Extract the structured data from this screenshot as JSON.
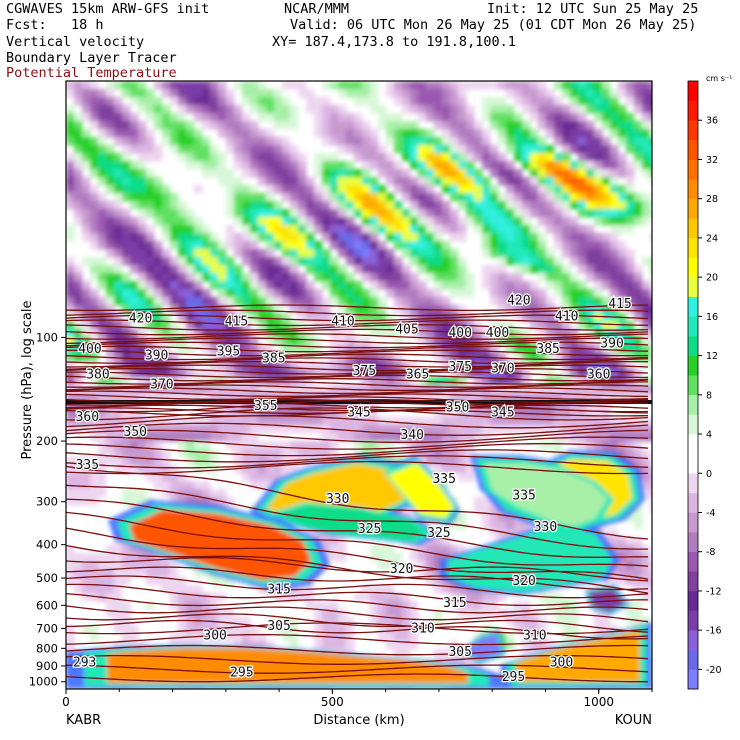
{
  "header": {
    "model": "CGWAVES 15km ARW-GFS init",
    "org": "NCAR/MMM",
    "init": "Init: 12 UTC Sun 25 May 25",
    "fcst": "Fcst:   18 h",
    "valid": "Valid: 06 UTC Mon 26 May 25 (01 CDT Mon 26 May 25)",
    "field1": "Vertical velocity",
    "field2": "Boundary Layer Tracer",
    "field3": "Potential Temperature",
    "xy": "XY= 187.4,173.8 to 191.8,100.1"
  },
  "colors": {
    "theta_contour": "#7a1010",
    "tracer_contour": "#000000"
  },
  "chart_data": {
    "type": "heatmap",
    "xlabel": "Distance (km)",
    "ylabel": "Pressure (hPa), log scale",
    "xlim": [
      0,
      1100
    ],
    "ylim": [
      1050,
      18
    ],
    "x_ticks": [
      "0",
      "500",
      "1000"
    ],
    "y_ticks": [
      "100",
      "200",
      "300",
      "400",
      "500",
      "600",
      "700",
      "800",
      "900",
      "1000"
    ],
    "left_endpoint": "KABR",
    "right_endpoint": "KOUN",
    "colorbar": {
      "unit": "cm s⁻¹",
      "tick_labels": [
        "36",
        "32",
        "28",
        "24",
        "20",
        "16",
        "12",
        "8",
        "4",
        "0",
        "-4",
        "-8",
        "-12",
        "-16",
        "-20"
      ],
      "levels": [
        -22,
        -20,
        -18,
        -16,
        -14,
        -12,
        -10,
        -8,
        -6,
        -4,
        -2,
        0,
        2,
        4,
        6,
        8,
        10,
        12,
        14,
        16,
        18,
        20,
        22,
        24,
        26,
        28,
        30,
        32,
        34,
        36,
        38,
        40
      ],
      "colors": [
        "#7d7dff",
        "#6a6ae8",
        "#8a60d8",
        "#7a3ea8",
        "#6a2a95",
        "#80409f",
        "#9a58b0",
        "#b07cc0",
        "#c89ad0",
        "#dcb6e2",
        "#eed6f0",
        "#ffffff",
        "#ffffff",
        "#d8f7d8",
        "#a8f0a8",
        "#60e060",
        "#28d028",
        "#10dc88",
        "#20e8b8",
        "#30f0e0",
        "#e8ff40",
        "#ffff00",
        "#ffe400",
        "#ffc800",
        "#ffa800",
        "#ff8c00",
        "#ff7000",
        "#ff5400",
        "#ff3800",
        "#ff1800",
        "#ff0000"
      ]
    },
    "theta_labels": [
      {
        "text": "420",
        "x": 140,
        "p": 88
      },
      {
        "text": "415",
        "x": 320,
        "p": 90
      },
      {
        "text": "410",
        "x": 520,
        "p": 90
      },
      {
        "text": "405",
        "x": 640,
        "p": 95
      },
      {
        "text": "400",
        "x": 740,
        "p": 97
      },
      {
        "text": "400",
        "x": 810,
        "p": 97
      },
      {
        "text": "420",
        "x": 850,
        "p": 78
      },
      {
        "text": "410",
        "x": 940,
        "p": 87
      },
      {
        "text": "415",
        "x": 1040,
        "p": 80
      },
      {
        "text": "400",
        "x": 45,
        "p": 108
      },
      {
        "text": "390",
        "x": 170,
        "p": 113
      },
      {
        "text": "395",
        "x": 305,
        "p": 110
      },
      {
        "text": "385",
        "x": 390,
        "p": 115
      },
      {
        "text": "385",
        "x": 905,
        "p": 108
      },
      {
        "text": "390",
        "x": 1025,
        "p": 104
      },
      {
        "text": "380",
        "x": 60,
        "p": 128
      },
      {
        "text": "370",
        "x": 180,
        "p": 137
      },
      {
        "text": "375",
        "x": 560,
        "p": 125
      },
      {
        "text": "365",
        "x": 660,
        "p": 128
      },
      {
        "text": "375",
        "x": 740,
        "p": 122
      },
      {
        "text": "370",
        "x": 820,
        "p": 123
      },
      {
        "text": "360",
        "x": 1000,
        "p": 128
      },
      {
        "text": "360",
        "x": 40,
        "p": 170
      },
      {
        "text": "355",
        "x": 375,
        "p": 158
      },
      {
        "text": "345",
        "x": 550,
        "p": 165
      },
      {
        "text": "350",
        "x": 735,
        "p": 160
      },
      {
        "text": "345",
        "x": 820,
        "p": 165
      },
      {
        "text": "350",
        "x": 130,
        "p": 188
      },
      {
        "text": "340",
        "x": 650,
        "p": 192
      },
      {
        "text": "335",
        "x": 40,
        "p": 235
      },
      {
        "text": "335",
        "x": 710,
        "p": 258
      },
      {
        "text": "335",
        "x": 860,
        "p": 288
      },
      {
        "text": "330",
        "x": 510,
        "p": 295
      },
      {
        "text": "330",
        "x": 900,
        "p": 355
      },
      {
        "text": "325",
        "x": 570,
        "p": 360
      },
      {
        "text": "325",
        "x": 700,
        "p": 370
      },
      {
        "text": "320",
        "x": 630,
        "p": 470
      },
      {
        "text": "320",
        "x": 860,
        "p": 510
      },
      {
        "text": "315",
        "x": 400,
        "p": 540
      },
      {
        "text": "315",
        "x": 730,
        "p": 590
      },
      {
        "text": "310",
        "x": 670,
        "p": 700
      },
      {
        "text": "310",
        "x": 880,
        "p": 735
      },
      {
        "text": "305",
        "x": 400,
        "p": 690
      },
      {
        "text": "300",
        "x": 280,
        "p": 735
      },
      {
        "text": "300",
        "x": 930,
        "p": 880
      },
      {
        "text": "305",
        "x": 740,
        "p": 820
      },
      {
        "text": "295",
        "x": 330,
        "p": 940
      },
      {
        "text": "295",
        "x": 840,
        "p": 970
      },
      {
        "text": "293",
        "x": 35,
        "p": 880
      }
    ]
  }
}
